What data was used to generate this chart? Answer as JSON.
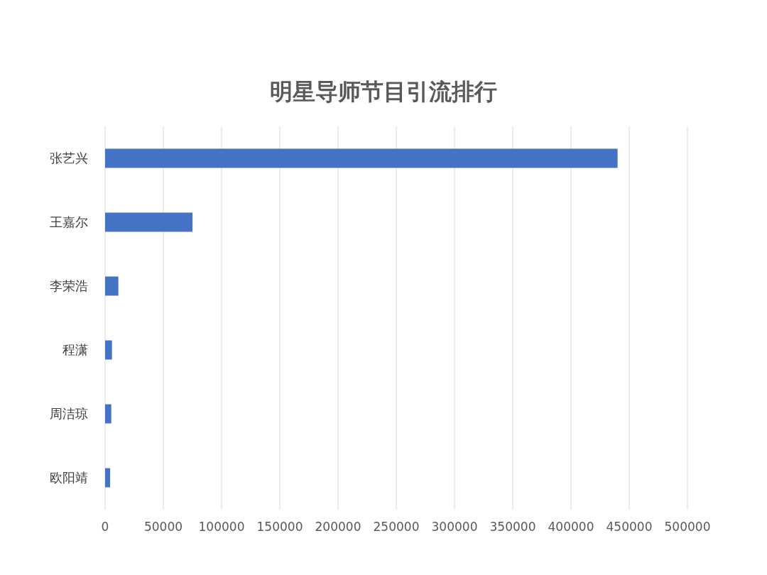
{
  "chart_data": {
    "type": "bar",
    "orientation": "horizontal",
    "title": "明星导师节目引流排行",
    "categories": [
      "张艺兴",
      "王嘉尔",
      "李荣浩",
      "程潇",
      "周洁琼",
      "欧阳靖"
    ],
    "values": [
      440000,
      75000,
      11400,
      5900,
      5300,
      4300
    ],
    "color": "#4472c4",
    "xlim": [
      0,
      500000
    ],
    "xticks": [
      0,
      50000,
      100000,
      150000,
      200000,
      250000,
      300000,
      350000,
      400000,
      450000,
      500000
    ],
    "grid": "x"
  }
}
